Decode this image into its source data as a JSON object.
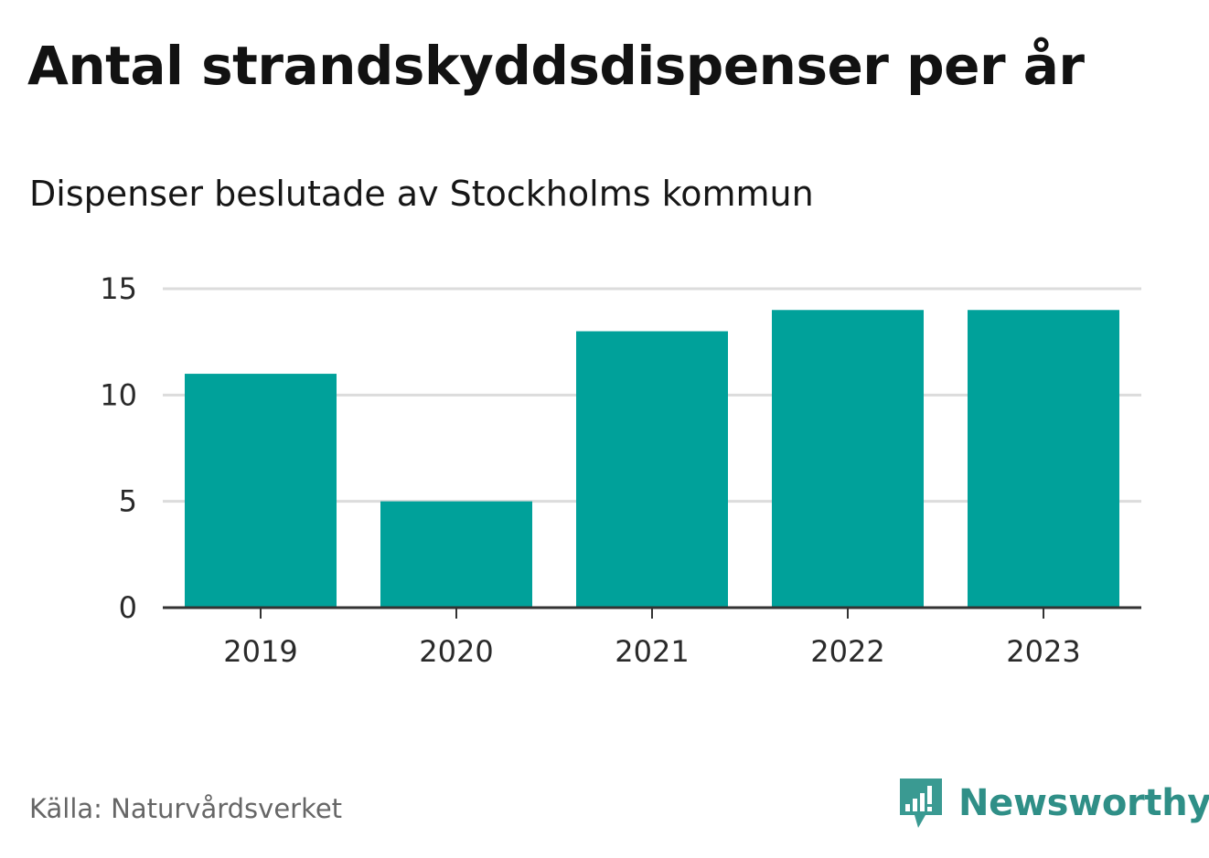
{
  "chart_data": {
    "type": "bar",
    "title": "Antal strandskyddsdispenser per år",
    "subtitle": "Dispenser beslutade av Stockholms kommun",
    "categories": [
      "2019",
      "2020",
      "2021",
      "2022",
      "2023"
    ],
    "values": [
      11,
      5,
      13,
      14,
      14
    ],
    "xlabel": "",
    "ylabel": "",
    "ylim": [
      0,
      15
    ],
    "yticks": [
      0,
      5,
      10,
      15
    ],
    "grid": true,
    "bar_color": "#00a19a",
    "source": "Källa: Naturvårdsverket"
  },
  "brand": {
    "name": "Newsworthy",
    "icon": "newsworthy-logo-icon",
    "color": "#2f8f87"
  }
}
